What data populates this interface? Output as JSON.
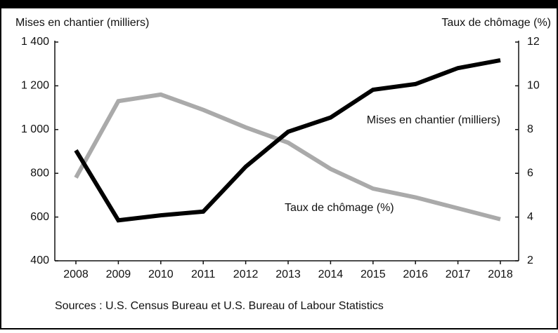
{
  "chart_data": {
    "type": "line",
    "y_label": "Mises en chantier (milliers)",
    "y2_label": "Taux de chômage (%)",
    "source": "Sources : U.S. Census Bureau et U.S. Bureau of Labour Statistics",
    "categories": [
      "2008",
      "2009",
      "2010",
      "2011",
      "2012",
      "2013",
      "2014",
      "2015",
      "2016",
      "2017",
      "2018"
    ],
    "series": [
      {
        "name": "Mises en chantier (milliers)",
        "color": "#000000",
        "values": [
          905,
          585,
          608,
          625,
          830,
          990,
          1055,
          1182,
          1208,
          1281,
          1317
        ]
      },
      {
        "name": "Taux de chômage (%)",
        "color": "#aaaaaa",
        "axis": "y2",
        "values": [
          5.8,
          9.3,
          9.6,
          8.9,
          8.1,
          7.4,
          6.2,
          5.3,
          4.9,
          4.4,
          3.9
        ]
      }
    ],
    "ylim": [
      400,
      1400
    ],
    "yticks": [
      400,
      600,
      800,
      {
        "value": 1000,
        "label": "1 000"
      },
      {
        "value": 1200,
        "label": "1 200"
      },
      {
        "value": 1400,
        "label": "1 400"
      }
    ],
    "y2lim": [
      2,
      12
    ],
    "y2ticks": [
      2,
      4,
      6,
      8,
      10,
      12
    ]
  }
}
